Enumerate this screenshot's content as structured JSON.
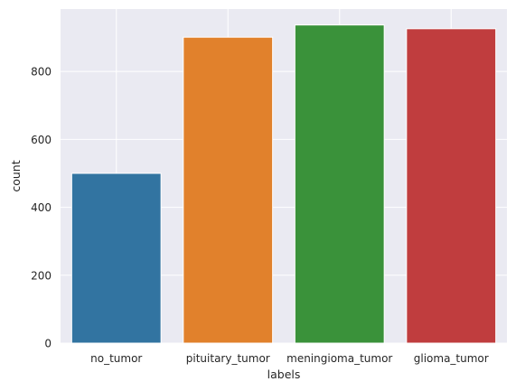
{
  "chart_data": {
    "type": "bar",
    "categories": [
      "no_tumor",
      "pituitary_tumor",
      "meningioma_tumor",
      "glioma_tumor"
    ],
    "values": [
      500,
      901,
      937,
      926
    ],
    "xlabel": "labels",
    "ylabel": "count",
    "ylim": [
      0,
      984
    ],
    "yticks": [
      0,
      200,
      400,
      600,
      800
    ],
    "grid": true,
    "colors": [
      "#3274a1",
      "#e1812c",
      "#3a923a",
      "#c03d3e"
    ],
    "plot_background": "#eaeaf2",
    "grid_color": "#ffffff"
  }
}
